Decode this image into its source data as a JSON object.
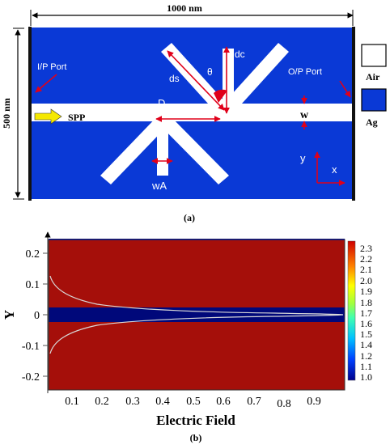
{
  "panel_a": {
    "width_label": "1000 nm",
    "height_label": "500 nm",
    "input_port_label": "I/P Port",
    "output_port_label": "O/P Port",
    "spp_label": "SPP",
    "d_label": "D",
    "ds_label": "ds",
    "dc_label": "dc",
    "theta_label": "θ",
    "w_label": "w",
    "wa_label": "wA",
    "y_axis_label": "y",
    "x_axis_label": "x",
    "legend": [
      {
        "label": "Air",
        "color": "#ffffff"
      },
      {
        "label": "Ag",
        "color": "#0a39d6"
      }
    ],
    "caption": "(a)"
  },
  "panel_b": {
    "caption": "(b)",
    "xlabel": "Electric Field",
    "ylabel": "Y",
    "x_ticks": [
      "0.1",
      "0.2",
      "0.3",
      "0.4",
      "0.5",
      "0.6",
      "0.7",
      "0.8",
      "0.9"
    ],
    "y_ticks": [
      "0.2",
      "0.1",
      "0",
      "-0.1",
      "-0.2"
    ],
    "colorbar_ticks": [
      "2.3",
      "2.2",
      "2.1",
      "2.0",
      "1.9",
      "1.8",
      "1.7",
      "1.6",
      "1.5",
      "1.4",
      "1.2",
      "1.1",
      "1.0"
    ]
  },
  "colors": {
    "silver": "#0a39d6",
    "air": "#ffffff",
    "field_high": "#a50f0a",
    "field_low": "#00087a",
    "arrow_red": "#e0001a",
    "spp_arrow": "#f5e800"
  }
}
